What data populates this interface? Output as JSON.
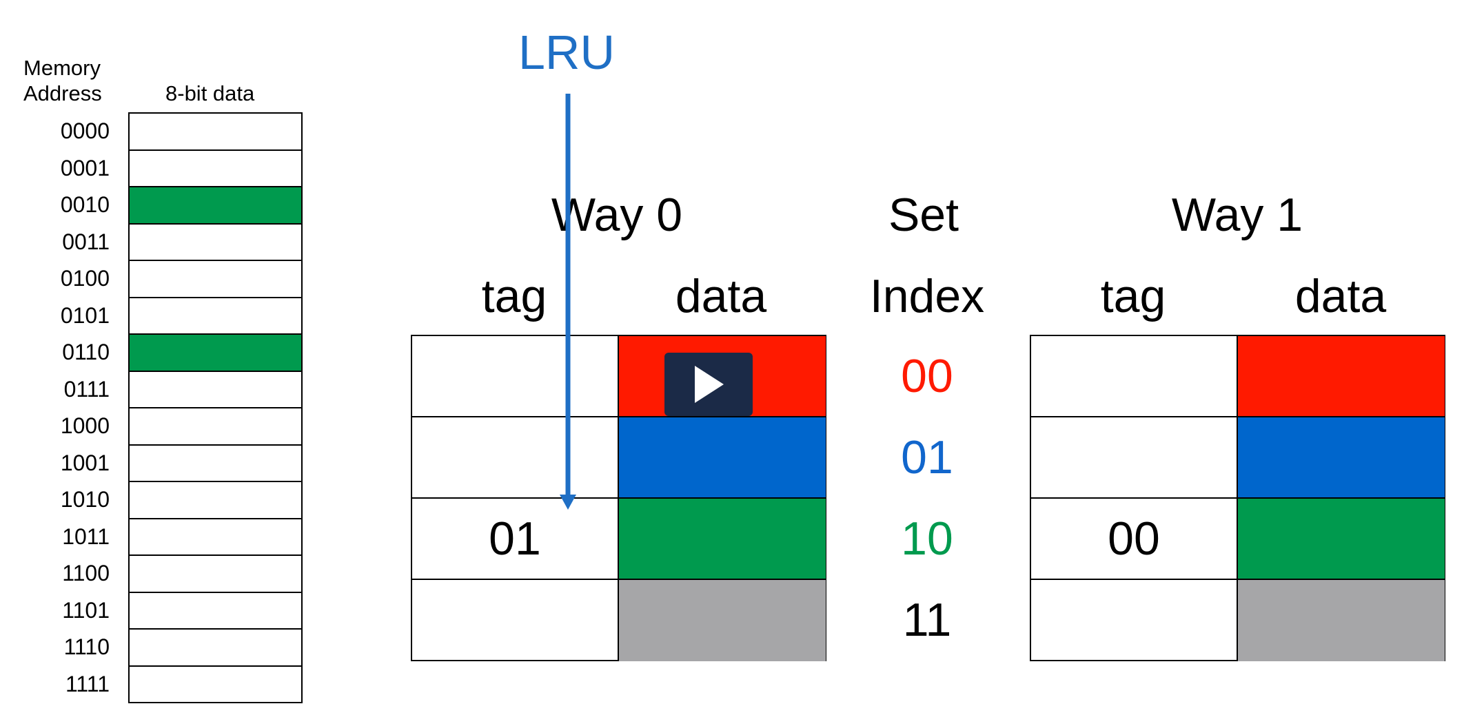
{
  "memory": {
    "header_address": "Memory\nAddress",
    "header_address_line1": "Memory",
    "header_address_line2": "Address",
    "header_data": "8-bit data",
    "rows": [
      {
        "address": "0000",
        "color": "#ffffff"
      },
      {
        "address": "0001",
        "color": "#ffffff"
      },
      {
        "address": "0010",
        "color": "#009a4e"
      },
      {
        "address": "0011",
        "color": "#ffffff"
      },
      {
        "address": "0100",
        "color": "#ffffff"
      },
      {
        "address": "0101",
        "color": "#ffffff"
      },
      {
        "address": "0110",
        "color": "#009a4e"
      },
      {
        "address": "0111",
        "color": "#ffffff"
      },
      {
        "address": "1000",
        "color": "#ffffff"
      },
      {
        "address": "1001",
        "color": "#ffffff"
      },
      {
        "address": "1010",
        "color": "#ffffff"
      },
      {
        "address": "1011",
        "color": "#ffffff"
      },
      {
        "address": "1100",
        "color": "#ffffff"
      },
      {
        "address": "1101",
        "color": "#ffffff"
      },
      {
        "address": "1110",
        "color": "#ffffff"
      },
      {
        "address": "1111",
        "color": "#ffffff"
      }
    ]
  },
  "cache": {
    "way0_title": "Way 0",
    "way1_title": "Way 1",
    "set_title": "Set",
    "index_title": "Index",
    "tag_label": "tag",
    "data_label": "data",
    "sets": [
      {
        "index": "00",
        "index_color": "#ff1a00",
        "block_color": "#ff1a00",
        "way0_tag": "",
        "way1_tag": ""
      },
      {
        "index": "01",
        "index_color": "#1166cc",
        "block_color": "#0066cc",
        "way0_tag": "",
        "way1_tag": ""
      },
      {
        "index": "10",
        "index_color": "#009a4e",
        "block_color": "#009a4e",
        "way0_tag": "01",
        "way1_tag": "00"
      },
      {
        "index": "11",
        "index_color": "#000000",
        "block_color": "#a6a6a8",
        "way0_tag": "",
        "way1_tag": ""
      }
    ]
  },
  "lru": {
    "label": "LRU",
    "color": "#1f6fc5",
    "points_to": "way0-set-10"
  },
  "icons": {
    "play": "play-icon"
  }
}
